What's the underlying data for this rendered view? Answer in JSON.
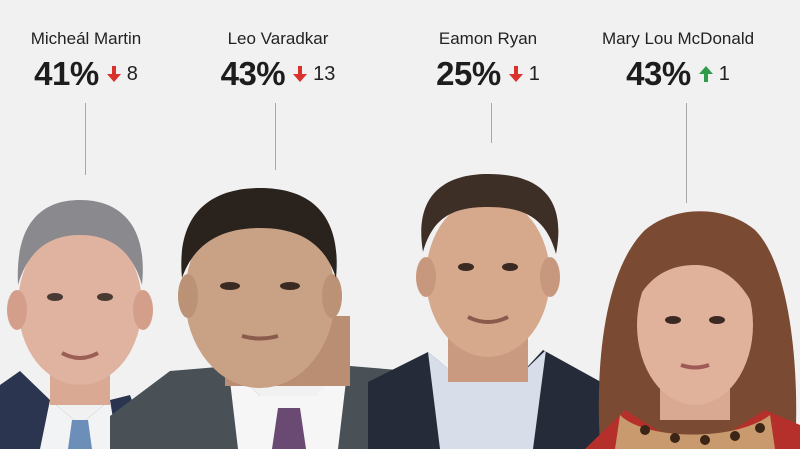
{
  "leaders": [
    {
      "name": "Micheál Martin",
      "percent": "41%",
      "direction": "down",
      "change": "8",
      "arrow_color": "#d9312b"
    },
    {
      "name": "Leo Varadkar",
      "percent": "43%",
      "direction": "down",
      "change": "13",
      "arrow_color": "#d9312b"
    },
    {
      "name": "Eamon Ryan",
      "percent": "25%",
      "direction": "down",
      "change": "1",
      "arrow_color": "#d9312b"
    },
    {
      "name": "Mary Lou McDonald",
      "percent": "43%",
      "direction": "up",
      "change": "1",
      "arrow_color": "#2e9c48"
    }
  ]
}
